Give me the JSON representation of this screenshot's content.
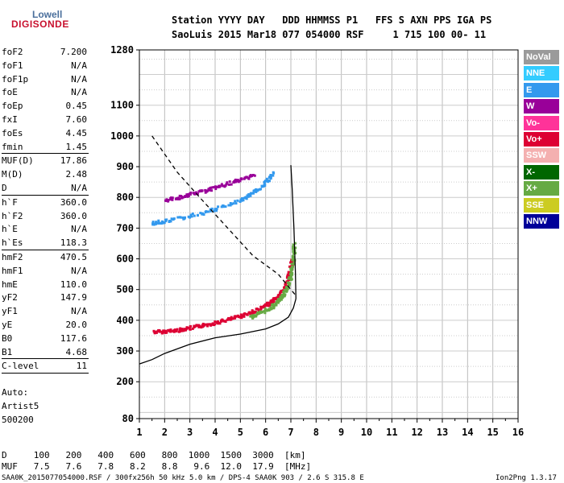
{
  "logo": {
    "top": "Lowell",
    "bottom": "DIGISONDE"
  },
  "header": {
    "line1": "Station YYYY DAY   DDD HHMMSS P1   FFS S AXN PPS IGA PS",
    "line2": "SaoLuis 2015 Mar18 077 054000 RSF     1 715 100 00- 11"
  },
  "params": [
    {
      "name": "foF2",
      "value": "7.200"
    },
    {
      "name": "foF1",
      "value": "N/A"
    },
    {
      "name": "foF1p",
      "value": "N/A"
    },
    {
      "name": "foE",
      "value": "N/A"
    },
    {
      "name": "foEp",
      "value": "0.45"
    },
    {
      "name": "fxI",
      "value": "7.60"
    },
    {
      "name": "foEs",
      "value": "4.45"
    },
    {
      "name": "fmin",
      "value": "1.45"
    },
    {
      "name": "MUF(D)",
      "value": "17.86"
    },
    {
      "name": "M(D)",
      "value": "2.48"
    },
    {
      "name": "D",
      "value": "N/A"
    },
    {
      "name": "h`F",
      "value": "360.0"
    },
    {
      "name": "h`F2",
      "value": "360.0"
    },
    {
      "name": "h`E",
      "value": "N/A"
    },
    {
      "name": "h`Es",
      "value": "118.3"
    },
    {
      "name": "hmF2",
      "value": "470.5"
    },
    {
      "name": "hmF1",
      "value": "N/A"
    },
    {
      "name": "hmE",
      "value": "110.0"
    },
    {
      "name": "yF2",
      "value": "147.9"
    },
    {
      "name": "yF1",
      "value": "N/A"
    },
    {
      "name": "yE",
      "value": "20.0"
    },
    {
      "name": "B0",
      "value": "117.6"
    },
    {
      "name": "B1",
      "value": "4.68"
    },
    {
      "name": "C-level",
      "value": "11"
    }
  ],
  "scaling": {
    "line1": "Auto:",
    "line2": "Artist5",
    "line3": "500200"
  },
  "muf_table": {
    "d_row": "D     100   200   400   600   800  1000  1500  3000  [km]",
    "muf_row": "MUF   7.5   7.6   7.8   8.2   8.8   9.6  12.0  17.9  [MHz]"
  },
  "footer": {
    "left": "SAA0K_2015077054000.RSF / 300fx256h 50 kHz 5.0 km / DPS-4 SAA0K 903 / 2.6 S 315.8 E",
    "right": "Ion2Png 1.3.17"
  },
  "legend": [
    {
      "label": "NoVal",
      "color": "#9a9a9a"
    },
    {
      "label": "NNE",
      "color": "#33ccff"
    },
    {
      "label": "E",
      "color": "#3399ee"
    },
    {
      "label": "W",
      "color": "#990099"
    },
    {
      "label": "Vo-",
      "color": "#ff3399"
    },
    {
      "label": "Vo+",
      "color": "#dd0033"
    },
    {
      "label": "SSW",
      "color": "#f4b0b0"
    },
    {
      "label": "X-",
      "color": "#006600"
    },
    {
      "label": "X+",
      "color": "#66aa44"
    },
    {
      "label": "SSE",
      "color": "#cccc22"
    },
    {
      "label": "NNW",
      "color": "#000099"
    }
  ],
  "chart_data": {
    "type": "scatter",
    "title": "",
    "xlabel": "",
    "ylabel": "",
    "xlim": [
      1,
      16
    ],
    "ylim": [
      80,
      1280
    ],
    "x_ticks": [
      1,
      2,
      3,
      4,
      5,
      6,
      7,
      8,
      9,
      10,
      11,
      12,
      13,
      14,
      15,
      16
    ],
    "y_ticks": [
      80,
      200,
      300,
      400,
      500,
      600,
      700,
      800,
      900,
      1000,
      1100,
      1280
    ],
    "y_minor_labels": [],
    "grid": true,
    "series": [
      {
        "name": "Vo+",
        "color": "#dd0033",
        "x": [
          1.6,
          2.0,
          2.5,
          3.0,
          3.5,
          4.0,
          4.5,
          5.0,
          5.5,
          6.0,
          6.3,
          6.6,
          6.8,
          6.95,
          7.05
        ],
        "y": [
          362,
          363,
          367,
          374,
          382,
          391,
          401,
          413,
          427,
          446,
          462,
          485,
          511,
          545,
          600
        ]
      },
      {
        "name": "X+",
        "color": "#66aa44",
        "x": [
          5.4,
          5.8,
          6.2,
          6.5,
          6.7,
          6.85,
          7.0,
          7.1,
          7.15
        ],
        "y": [
          410,
          423,
          440,
          460,
          480,
          505,
          540,
          590,
          650
        ]
      },
      {
        "name": "E",
        "color": "#3399ee",
        "x": [
          1.5,
          2.0,
          3.0,
          4.0,
          5.0,
          5.5,
          6.0,
          6.3
        ],
        "y": [
          715,
          722,
          738,
          760,
          790,
          812,
          845,
          880
        ]
      },
      {
        "name": "W",
        "color": "#990099",
        "x": [
          2.0,
          2.6,
          3.2,
          3.8,
          4.4,
          5.0,
          5.6
        ],
        "y": [
          790,
          800,
          812,
          826,
          840,
          856,
          875
        ]
      },
      {
        "name": "profile",
        "color": "#000000",
        "x": [
          1.0,
          1.5,
          2.0,
          3.0,
          4.0,
          5.0,
          6.0,
          6.5,
          6.9,
          7.1,
          7.2
        ],
        "y": [
          258,
          272,
          292,
          322,
          343,
          355,
          372,
          388,
          410,
          440,
          470
        ]
      },
      {
        "name": "model",
        "color": "#000000",
        "x": [
          7.2,
          7.18,
          7.12,
          7.05,
          7.0
        ],
        "y": [
          470,
          560,
          700,
          830,
          905
        ]
      },
      {
        "name": "muf",
        "color": "#000000",
        "x": [
          1.5,
          2.5,
          3.5,
          4.5,
          5.5,
          6.5,
          7.2
        ],
        "y": [
          1000,
          882,
          790,
          700,
          610,
          550,
          480
        ]
      }
    ]
  }
}
